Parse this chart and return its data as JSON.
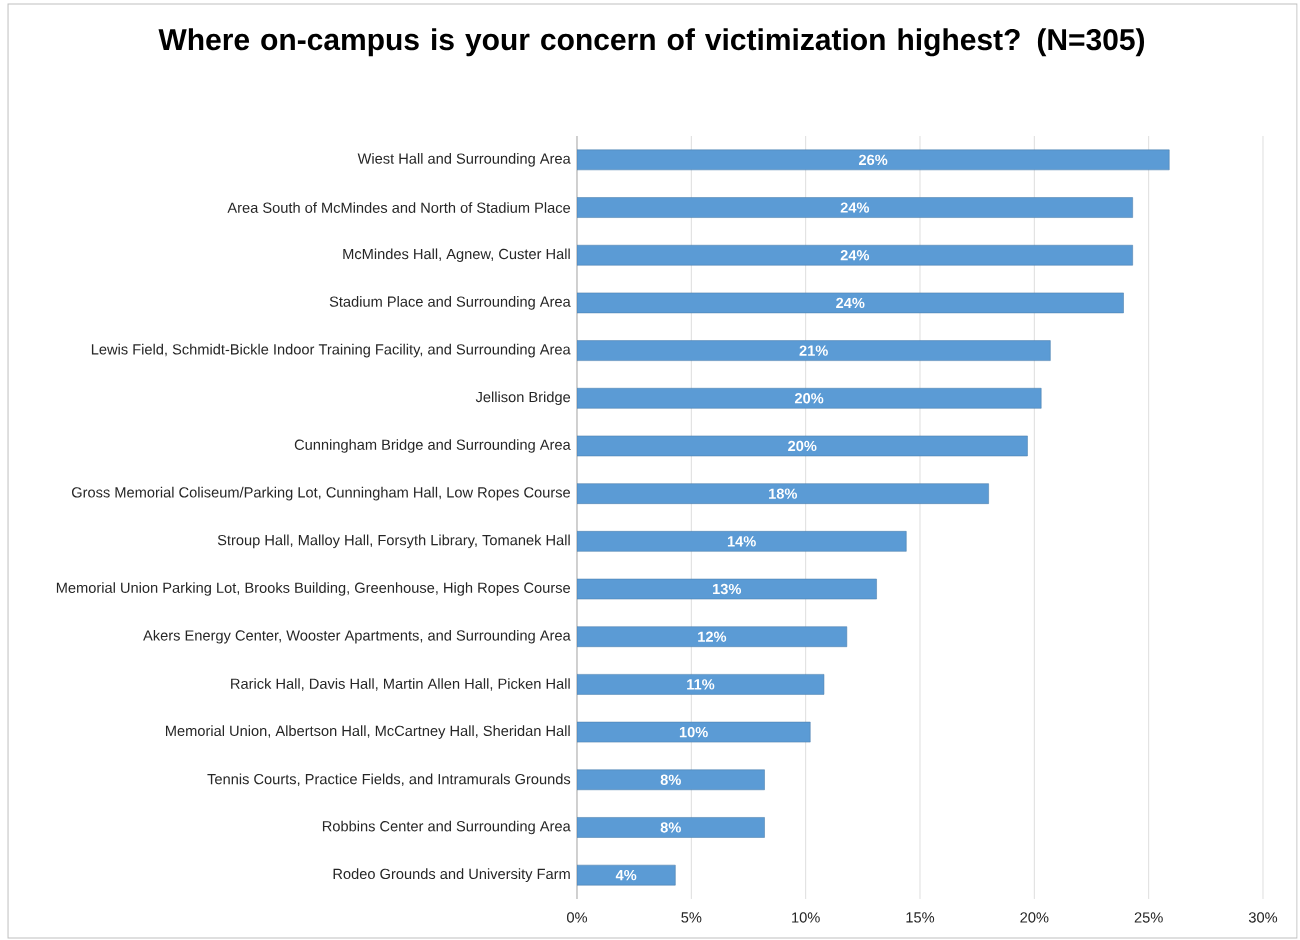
{
  "chart_data": {
    "type": "bar",
    "orientation": "horizontal",
    "title": "Where on-campus is your concern of victimization highest? (N=305)",
    "categories": [
      "Wiest Hall and Surrounding Area",
      "Area South of McMindes and North of Stadium Place",
      "McMindes Hall, Agnew, Custer Hall",
      "Stadium Place and Surrounding Area",
      "Lewis Field, Schmidt-Bickle Indoor Training Facility, and Surrounding Area",
      "Jellison Bridge",
      "Cunningham Bridge and Surrounding Area",
      "Gross Memorial Coliseum/Parking Lot, Cunningham Hall, Low Ropes Course",
      "Stroup Hall, Malloy Hall, Forsyth Library, Tomanek Hall",
      "Memorial Union Parking Lot, Brooks Building, Greenhouse, High Ropes Course",
      "Akers Energy Center, Wooster Apartments, and Surrounding Area",
      "Rarick Hall, Davis Hall, Martin Allen Hall, Picken Hall",
      "Memorial Union, Albertson Hall, McCartney Hall, Sheridan Hall",
      "Tennis Courts, Practice Fields, and Intramurals Grounds",
      "Robbins Center and Surrounding Area",
      "Rodeo Grounds and University Farm"
    ],
    "values": [
      25.9,
      24.3,
      24.3,
      23.9,
      20.7,
      20.3,
      19.7,
      18.0,
      14.4,
      13.1,
      11.8,
      10.8,
      10.2,
      8.2,
      8.2,
      4.3
    ],
    "value_labels": [
      "26%",
      "24%",
      "24%",
      "24%",
      "21%",
      "20%",
      "20%",
      "18%",
      "14%",
      "13%",
      "12%",
      "11%",
      "10%",
      "8%",
      "8%",
      "4%"
    ],
    "color": "#5b9bd5",
    "xlim": [
      0,
      30
    ],
    "xticks": [
      {
        "value": 0,
        "label": "0%"
      },
      {
        "value": 5,
        "label": "5%"
      },
      {
        "value": 10,
        "label": "10%"
      },
      {
        "value": 15,
        "label": "15%"
      },
      {
        "value": 20,
        "label": "20%"
      },
      {
        "value": 25,
        "label": "25%"
      },
      {
        "value": 30,
        "label": "30%"
      }
    ],
    "grid": "x"
  }
}
